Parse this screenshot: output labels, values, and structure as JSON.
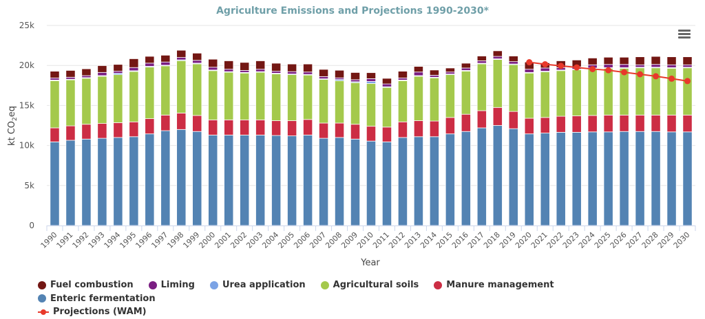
{
  "chart_data": {
    "type": "bar",
    "stacked": true,
    "title": "Agriculture Emissions and Projections 1990-2030*",
    "xlabel": "Year",
    "ylabel": "kt CO2eq",
    "ylabel_parts": {
      "pre": "kt CO",
      "sub": "2",
      "post": "eq"
    },
    "ylim": [
      0,
      25000
    ],
    "yticks": [
      0,
      5000,
      10000,
      15000,
      20000,
      25000
    ],
    "ytick_labels": [
      "0",
      "5k",
      "10k",
      "15k",
      "20k",
      "25k"
    ],
    "grid": true,
    "legend_position": "bottom",
    "categories": [
      "1990",
      "1991",
      "1992",
      "1993",
      "1994",
      "1995",
      "1996",
      "1997",
      "1998",
      "1999",
      "2000",
      "2001",
      "2002",
      "2003",
      "2004",
      "2005",
      "2006",
      "2007",
      "2008",
      "2009",
      "2010",
      "2011",
      "2012",
      "2013",
      "2014",
      "2015",
      "2016",
      "2017",
      "2018",
      "2019",
      "2020",
      "2021",
      "2022",
      "2023",
      "2024",
      "2025",
      "2026",
      "2027",
      "2028",
      "2029",
      "2030"
    ],
    "series": [
      {
        "name": "Enteric fermentation",
        "color": "#5383b3",
        "values": [
          10450,
          10650,
          10800,
          10900,
          11000,
          11100,
          11450,
          11850,
          12000,
          11750,
          11300,
          11300,
          11300,
          11300,
          11250,
          11200,
          11300,
          10900,
          11000,
          10800,
          10550,
          10450,
          11000,
          11100,
          11100,
          11450,
          11750,
          12200,
          12500,
          12100,
          11450,
          11550,
          11650,
          11650,
          11700,
          11700,
          11750,
          11750,
          11750,
          11700,
          11700
        ]
      },
      {
        "name": "Manure management",
        "color": "#cc2d44",
        "values": [
          1750,
          1800,
          1850,
          1850,
          1850,
          1850,
          1900,
          1950,
          2050,
          2000,
          1900,
          1900,
          1900,
          1900,
          1850,
          1900,
          1950,
          1900,
          1800,
          1850,
          1850,
          1850,
          1950,
          2000,
          1950,
          2050,
          2150,
          2150,
          2250,
          2150,
          1950,
          1950,
          2000,
          2050,
          2050,
          2100,
          2050,
          2050,
          2050,
          2100,
          2100
        ]
      },
      {
        "name": "Agricultural soils",
        "color": "#a4c94c",
        "values": [
          5900,
          5750,
          5750,
          5900,
          6000,
          6300,
          6450,
          6150,
          6550,
          6450,
          6150,
          5950,
          5850,
          5950,
          5850,
          5750,
          5550,
          5450,
          5300,
          5200,
          5350,
          4950,
          5150,
          5550,
          5400,
          5350,
          5400,
          5850,
          6000,
          5850,
          5650,
          5700,
          5700,
          5750,
          5850,
          5850,
          5850,
          5900,
          5900,
          5850,
          5900
        ]
      },
      {
        "name": "Urea application",
        "color": "#7ba3e5",
        "values": [
          80,
          80,
          80,
          80,
          180,
          90,
          90,
          80,
          100,
          90,
          80,
          80,
          80,
          80,
          80,
          80,
          80,
          80,
          150,
          120,
          250,
          90,
          80,
          80,
          80,
          80,
          80,
          80,
          80,
          80,
          80,
          80,
          80,
          80,
          80,
          80,
          80,
          80,
          80,
          80,
          80
        ]
      },
      {
        "name": "Liming",
        "color": "#7a1e82",
        "values": [
          250,
          250,
          250,
          400,
          250,
          400,
          400,
          400,
          300,
          350,
          350,
          300,
          250,
          300,
          250,
          300,
          300,
          280,
          200,
          250,
          350,
          350,
          250,
          450,
          250,
          250,
          300,
          300,
          300,
          300,
          400,
          400,
          300,
          300,
          400,
          400,
          400,
          300,
          350,
          350,
          300
        ]
      },
      {
        "name": "Fuel combustion",
        "color": "#731713",
        "values": [
          850,
          850,
          850,
          850,
          850,
          1100,
          850,
          850,
          900,
          900,
          1000,
          1050,
          1000,
          1050,
          1000,
          950,
          1000,
          900,
          950,
          900,
          750,
          700,
          850,
          700,
          650,
          500,
          600,
          600,
          700,
          700,
          900,
          650,
          850,
          850,
          850,
          900,
          900,
          1000,
          1000,
          1000,
          1000
        ]
      }
    ],
    "line_series": {
      "name": "Projections (WAM)",
      "color": "#e8392b",
      "x": [
        "2020",
        "2021",
        "2022",
        "2023",
        "2024",
        "2025",
        "2026",
        "2027",
        "2028",
        "2029",
        "2030"
      ],
      "values": [
        20400,
        20150,
        19950,
        19750,
        19550,
        19400,
        19150,
        18900,
        18650,
        18350,
        18050
      ]
    }
  },
  "ui": {
    "menu_icon": "hamburger-menu-icon"
  }
}
